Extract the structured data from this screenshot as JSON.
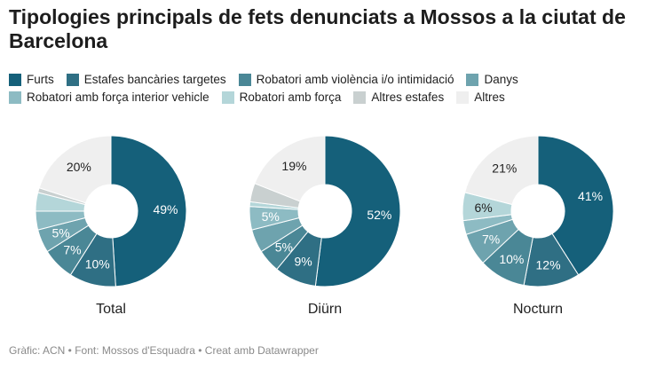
{
  "title": "Tipologies principals de fets denunciats a Mossos a la ciutat de Barcelona",
  "footer": "Gràfic: ACN • Font: Mossos d'Esquadra • Creat amb Datawrapper",
  "chart_data": {
    "type": "pie",
    "variant": "donut",
    "legend_position": "top",
    "categories": [
      "Furts",
      "Estafes bancàries targetes",
      "Robatori amb violència i/o intimidació",
      "Danys",
      "Robatori amb força interior vehicle",
      "Robatori amb força",
      "Altres estafes",
      "Altres"
    ],
    "colors": [
      "#15607a",
      "#2f6f84",
      "#4a8796",
      "#6ea3ae",
      "#8dbbc3",
      "#b4d6d9",
      "#c9d0d0",
      "#efefef"
    ],
    "charts": [
      {
        "title": "Total",
        "values": [
          49,
          10,
          7,
          5,
          4,
          4,
          1,
          20
        ],
        "labels": [
          "49%",
          "10%",
          "7%",
          "5%",
          "",
          "",
          "",
          "20%"
        ]
      },
      {
        "title": "Diürn",
        "values": [
          52,
          9,
          5,
          5,
          5,
          1,
          4,
          19
        ],
        "labels": [
          "52%",
          "9%",
          "5%",
          "",
          "5%",
          "",
          "",
          "19%"
        ]
      },
      {
        "title": "Nocturn",
        "values": [
          41,
          12,
          10,
          7,
          3,
          6,
          0,
          21
        ],
        "labels": [
          "41%",
          "12%",
          "10%",
          "7%",
          "",
          "6%",
          "",
          "21%"
        ]
      }
    ]
  }
}
